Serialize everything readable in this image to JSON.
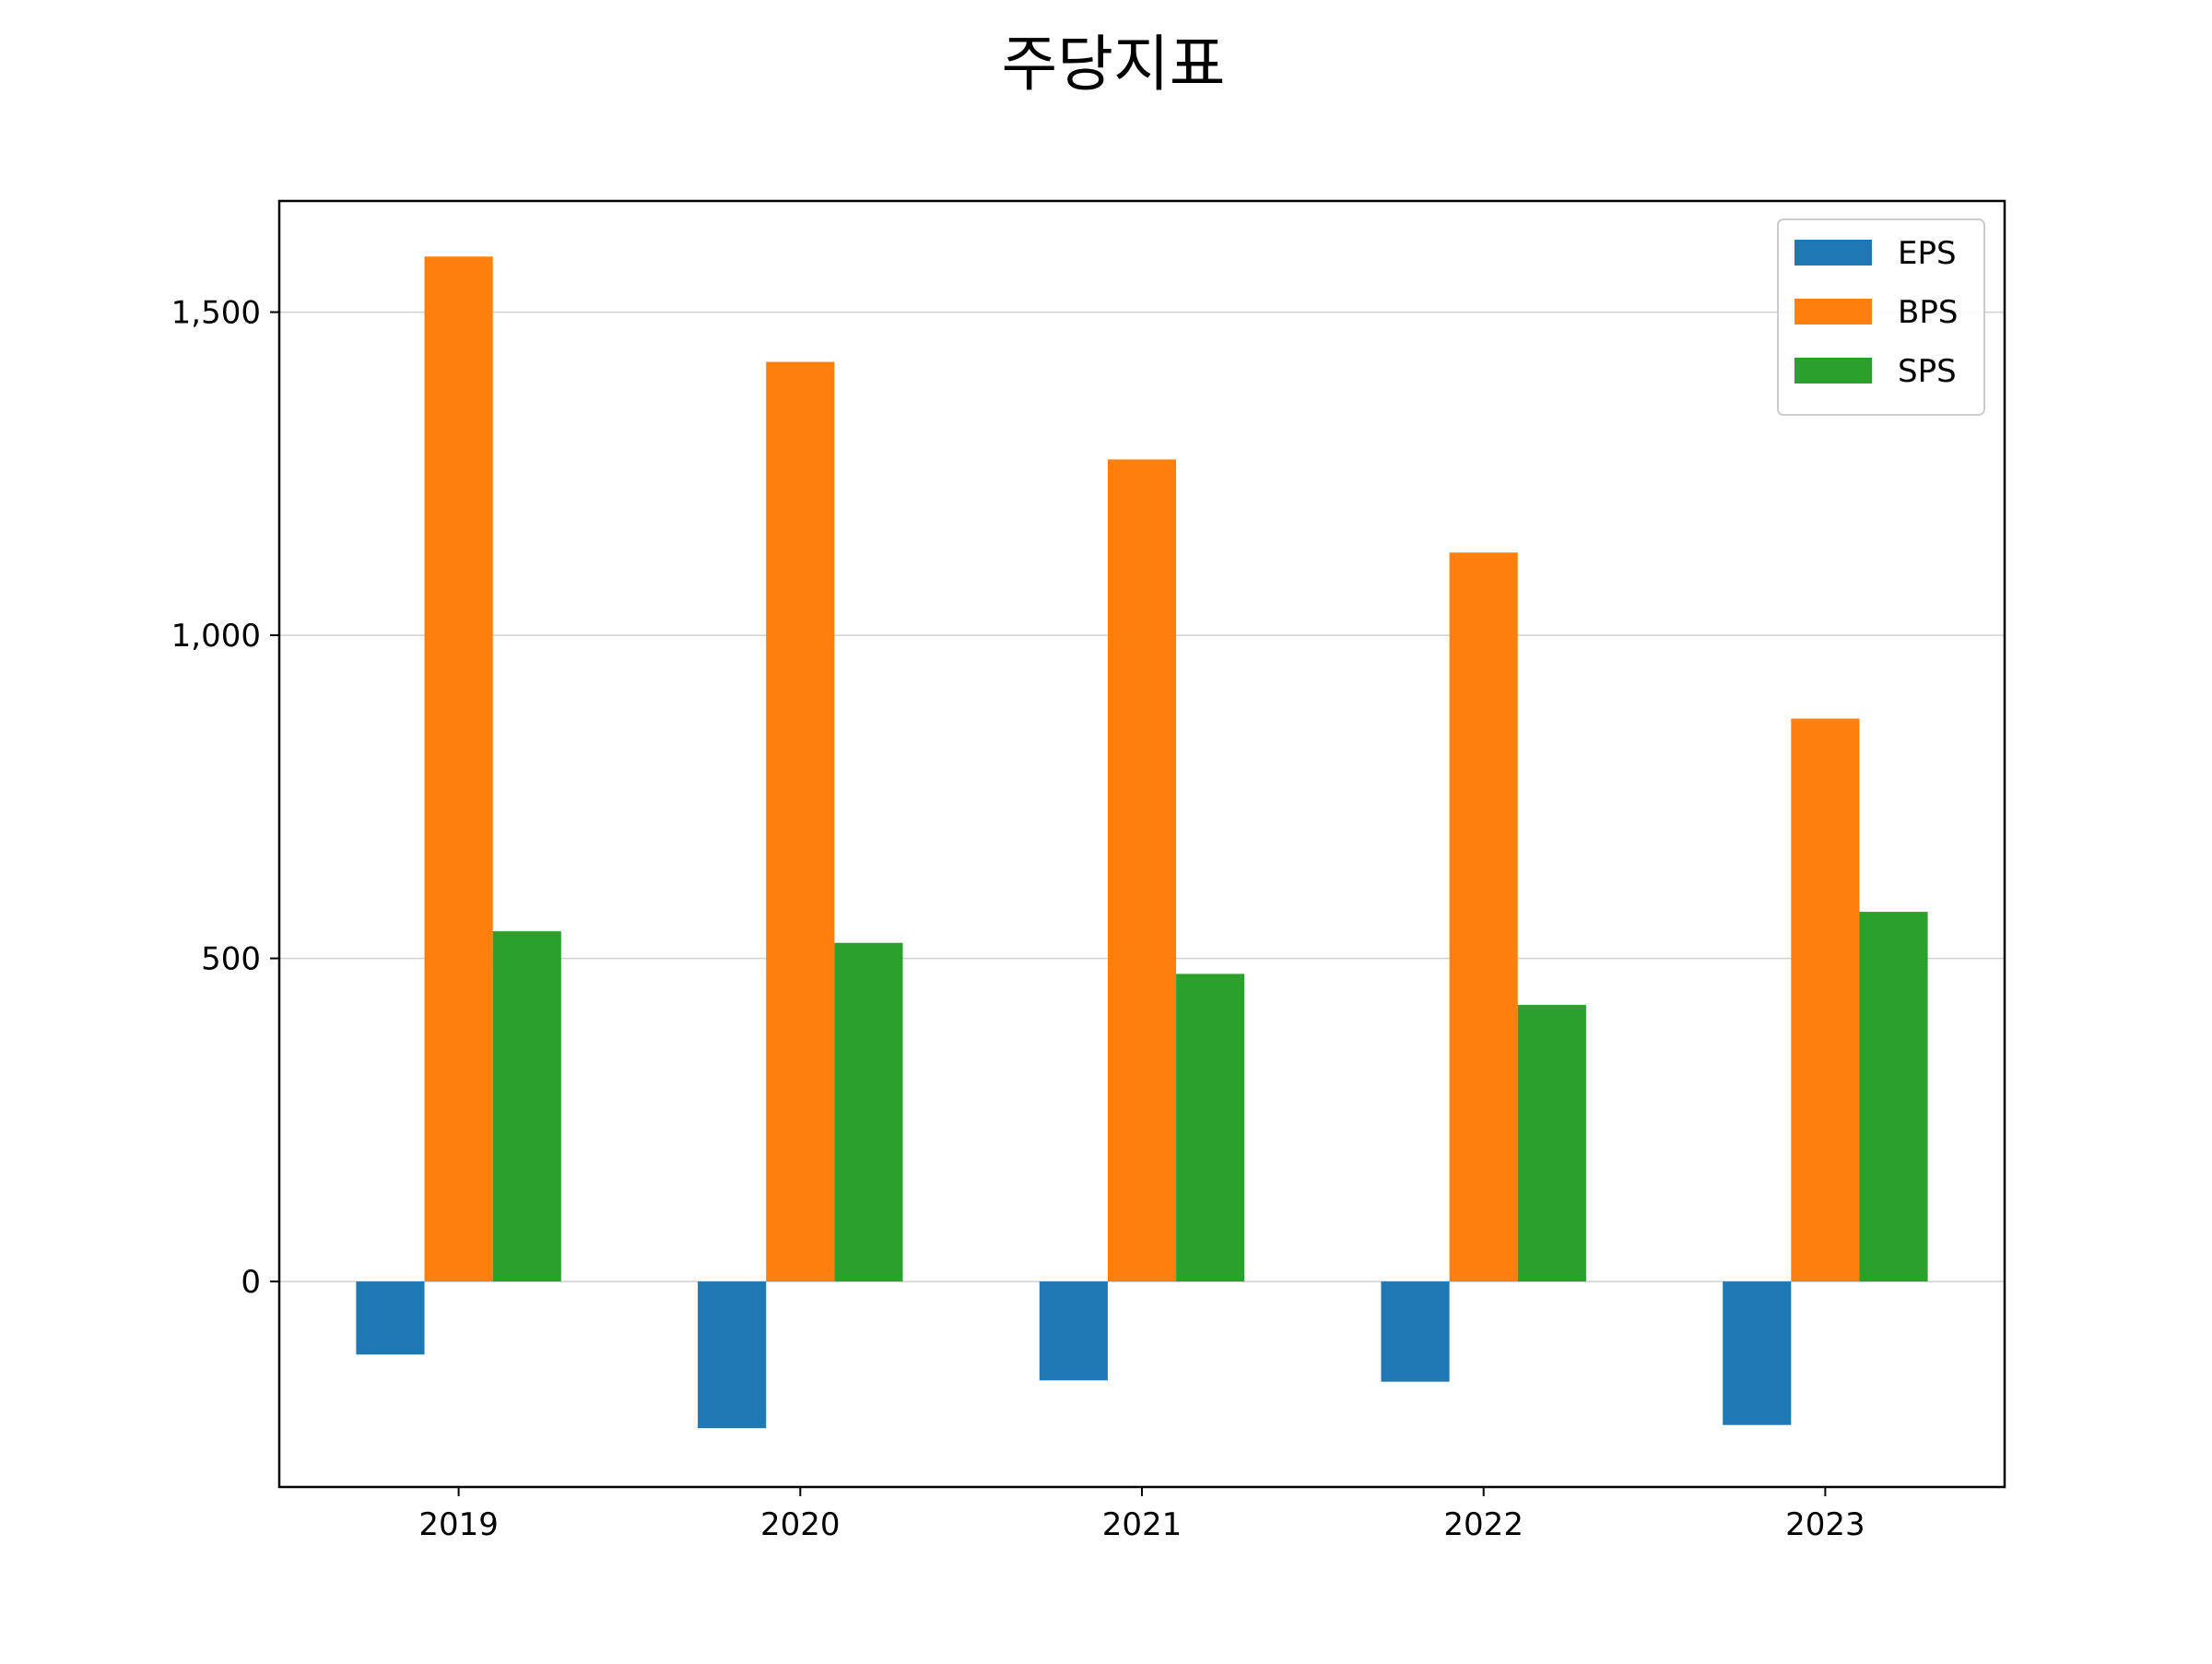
{
  "chart_data": {
    "type": "bar",
    "title": "주당지표",
    "xlabel": "",
    "ylabel": "",
    "categories": [
      "2019",
      "2020",
      "2021",
      "2022",
      "2023"
    ],
    "series": [
      {
        "name": "EPS",
        "color": "#1f77b4",
        "values": [
          -113,
          -227,
          -153,
          -155,
          -222
        ]
      },
      {
        "name": "BPS",
        "color": "#ff7f0e",
        "values": [
          1586,
          1423,
          1272,
          1128,
          871
        ]
      },
      {
        "name": "SPS",
        "color": "#2ca02c",
        "values": [
          542,
          524,
          476,
          428,
          572
        ]
      }
    ],
    "ylim": [
      -318,
      1672
    ],
    "yticks": [
      0,
      500,
      1000,
      1500
    ],
    "ytick_labels": [
      "0",
      "500",
      "1,000",
      "1,500"
    ],
    "grid": "y",
    "legend": "top-right"
  }
}
